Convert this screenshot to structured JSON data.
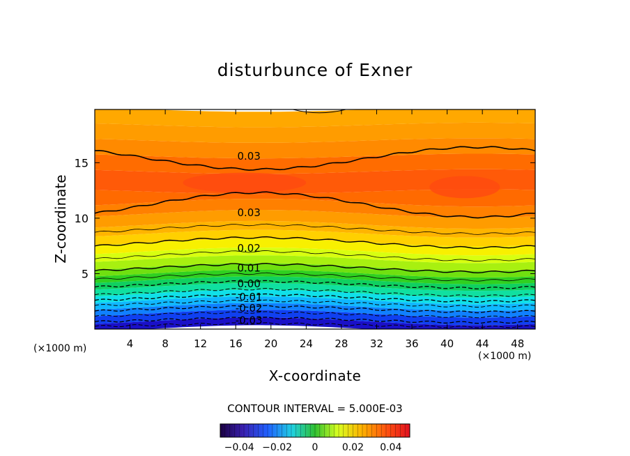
{
  "chart_data": {
    "type": "contour",
    "title": "disturbunce of Exner",
    "xlabel": "X-coordinate",
    "ylabel": "Z-coordinate",
    "x_unit": "(×1000 m)",
    "xlim": [
      0,
      50
    ],
    "ylim": [
      0,
      19.8
    ],
    "x_ticks": [
      4,
      8,
      12,
      16,
      20,
      24,
      28,
      32,
      36,
      40,
      44,
      48
    ],
    "y_ticks": [
      5,
      10,
      15
    ],
    "contour_interval_label": "CONTOUR INTERVAL = 5.000E-03",
    "contour_labels": [
      {
        "text": "0.03",
        "x": 17.5,
        "z": 15.6
      },
      {
        "text": "0.03",
        "x": 17.5,
        "z": 10.5
      },
      {
        "text": "0.02",
        "x": 17.5,
        "z": 7.3
      },
      {
        "text": "0.01",
        "x": 17.5,
        "z": 5.5
      },
      {
        "text": "0.00",
        "x": 17.5,
        "z": 4.1
      },
      {
        "text": "-0.01",
        "x": 17.5,
        "z": 2.9
      },
      {
        "text": "-0.02",
        "x": 17.5,
        "z": 1.9
      },
      {
        "text": "-0.03",
        "x": 17.5,
        "z": 0.8
      }
    ],
    "colorbar": {
      "range": [
        -0.05,
        0.05
      ],
      "tick_values": [
        -0.04,
        -0.02,
        0,
        0.02,
        0.04
      ],
      "tick_labels": [
        "−0.04",
        "−0.02",
        "0",
        "0.02",
        "0.04"
      ]
    }
  }
}
